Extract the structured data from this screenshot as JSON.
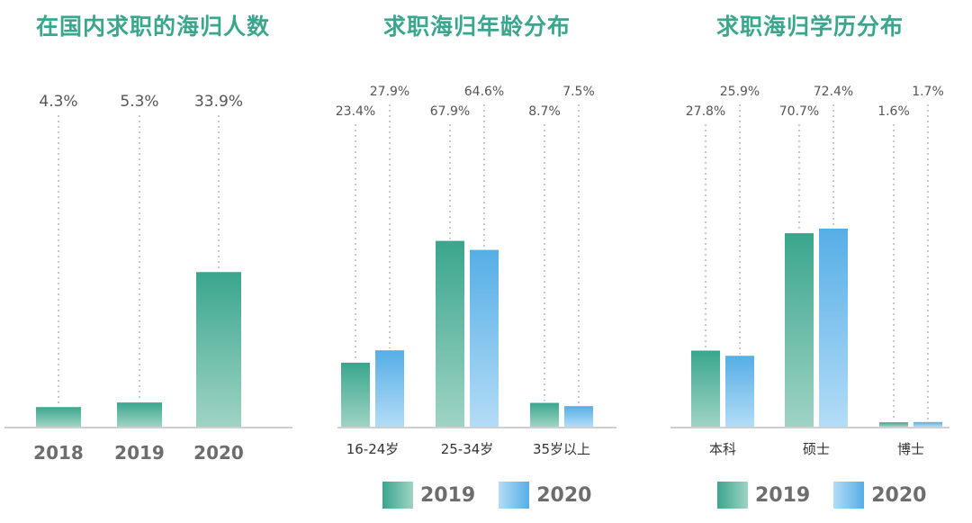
{
  "colors": {
    "title": "#3aa68d",
    "s2019_top": "#3aa68d",
    "s2019_bottom": "#9fd3c4",
    "s2020_top": "#56aee6",
    "s2020_bottom": "#b3dcf6",
    "axis": "#cfcfcf",
    "text": "#555555",
    "tick_bold": "#6d6d6d"
  },
  "legend": {
    "s2019": "2019",
    "s2020": "2020"
  },
  "chart_data": [
    {
      "type": "bar",
      "title": "在国内求职的海归人数",
      "categories": [
        "2018",
        "2019",
        "2020"
      ],
      "series": [
        {
          "values": [
            4.3,
            5.3,
            33.9
          ],
          "labels": [
            "4.3%",
            "5.3%",
            "33.9%"
          ]
        }
      ],
      "ylim": [
        0,
        60
      ],
      "grid": false,
      "legend": "none"
    },
    {
      "type": "bar",
      "title": "求职海归年龄分布",
      "categories": [
        "16-24岁",
        "25-34岁",
        "35岁以上"
      ],
      "series": [
        {
          "name": "2019",
          "values": [
            23.4,
            67.9,
            8.7
          ],
          "labels": [
            "23.4%",
            "67.9%",
            "8.7%"
          ]
        },
        {
          "name": "2020",
          "values": [
            27.9,
            64.6,
            7.5
          ],
          "labels": [
            "27.9%",
            "64.6%",
            "7.5%"
          ]
        }
      ],
      "ylim": [
        0,
        100
      ],
      "grid": false,
      "legend": "bottom"
    },
    {
      "type": "bar",
      "title": "求职海归学历分布",
      "categories": [
        "本科",
        "硕士",
        "博士"
      ],
      "series": [
        {
          "name": "2019",
          "values": [
            27.8,
            70.7,
            1.6
          ],
          "labels": [
            "27.8%",
            "70.7%",
            "1.6%"
          ]
        },
        {
          "name": "2020",
          "values": [
            25.9,
            72.4,
            1.7
          ],
          "labels": [
            "25.9%",
            "72.4%",
            "1.7%"
          ]
        }
      ],
      "ylim": [
        0,
        100
      ],
      "grid": false,
      "legend": "bottom"
    }
  ]
}
